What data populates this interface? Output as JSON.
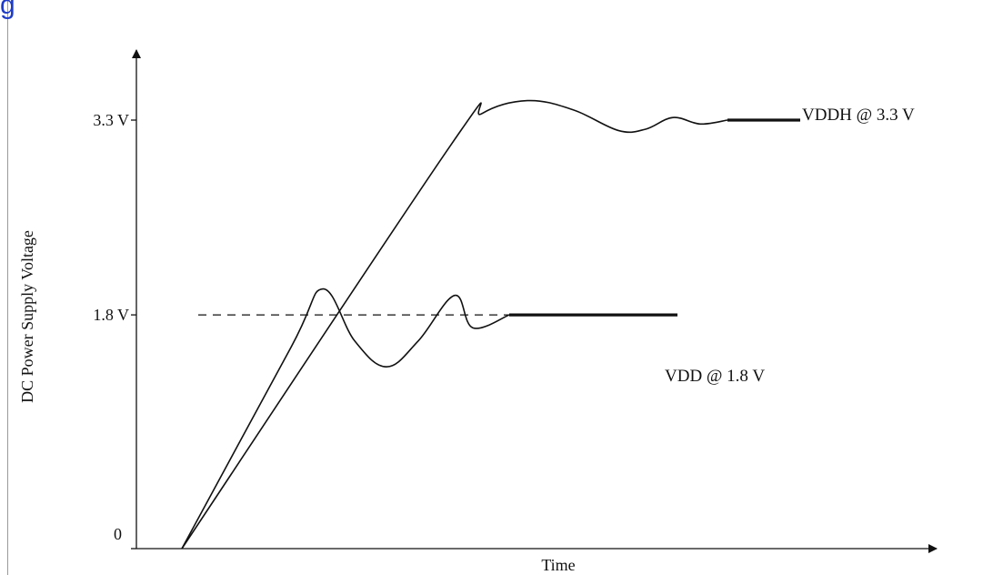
{
  "header": {
    "link_text": "g"
  },
  "chart_data": {
    "type": "line",
    "title": "",
    "xlabel": "Time",
    "ylabel": "DC Power Supply Voltage",
    "ylim": [
      0,
      4.0
    ],
    "xlim": [
      0,
      10
    ],
    "y_ticks": [
      {
        "value": 0,
        "label": "0"
      },
      {
        "value": 1.8,
        "label": "1.8 V"
      },
      {
        "value": 3.3,
        "label": "3.3 V"
      }
    ],
    "series": [
      {
        "label": "VDDH @ 3.3 V",
        "x": [
          0.5,
          3.45,
          3.8,
          4.3,
          4.8,
          5.3,
          5.6,
          5.9,
          6.2,
          6.5,
          7.3
        ],
        "y": [
          0,
          3.1,
          3.35,
          3.45,
          3.38,
          3.22,
          3.23,
          3.32,
          3.27,
          3.3,
          3.3
        ]
      },
      {
        "label": "VDD @ 1.8 V",
        "x": [
          0.5,
          1.7,
          2.05,
          2.4,
          2.75,
          3.1,
          3.5,
          3.7,
          4.1,
          5.95
        ],
        "y": [
          0,
          1.55,
          2.0,
          1.6,
          1.4,
          1.6,
          1.95,
          1.7,
          1.8,
          1.8
        ]
      }
    ],
    "reference_lines": [
      {
        "y": 1.8,
        "style": "dashed",
        "x_from": 0.7,
        "x_to": 4.1
      }
    ],
    "grid": false,
    "legend": "inline-right"
  }
}
